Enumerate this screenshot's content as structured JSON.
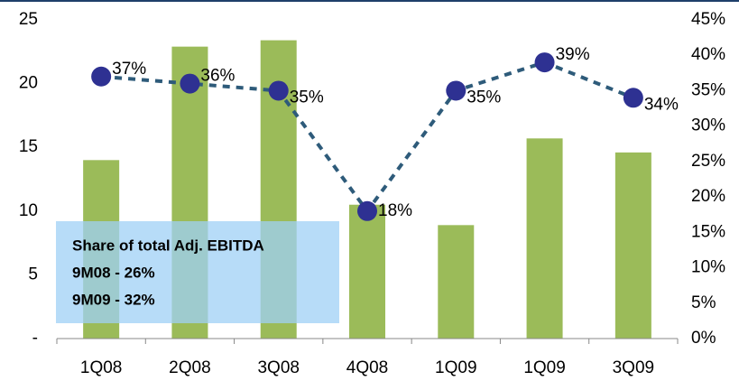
{
  "chart_data": {
    "type": "bar_line",
    "categories": [
      "1Q08",
      "2Q08",
      "3Q08",
      "4Q08",
      "1Q09",
      "1Q09",
      "3Q09"
    ],
    "series": [
      {
        "type": "bar",
        "color": "#9bbb59",
        "values": [
          14.0,
          22.9,
          23.4,
          10.5,
          8.9,
          15.7,
          14.6
        ]
      },
      {
        "type": "line",
        "axis": "y2",
        "color": "#2e5b7a",
        "marker_color": "#2e3192",
        "values": [
          37,
          36,
          35,
          18,
          35,
          39,
          34
        ],
        "value_labels": [
          "37%",
          "36%",
          "35%",
          "18%",
          "35%",
          "39%",
          "34%"
        ]
      }
    ],
    "ylim": [
      0,
      25
    ],
    "yticks": [
      {
        "value": 0,
        "label": "-"
      },
      5,
      10,
      15,
      20,
      25
    ],
    "y2lim": [
      0,
      45
    ],
    "y2ticks": [
      {
        "value": 0,
        "label": "0%"
      },
      {
        "value": 5,
        "label": "5%"
      },
      {
        "value": 10,
        "label": "10%"
      },
      {
        "value": 15,
        "label": "15%"
      },
      {
        "value": 20,
        "label": "20%"
      },
      {
        "value": 25,
        "label": "25%"
      },
      {
        "value": 30,
        "label": "30%"
      },
      {
        "value": 35,
        "label": "35%"
      },
      {
        "value": 40,
        "label": "40%"
      },
      {
        "value": 45,
        "label": "45%"
      }
    ],
    "annotation": {
      "lines": [
        "Share of total Adj. EBITDA",
        "9M08 - 26%",
        "9M09 - 32%"
      ]
    }
  }
}
